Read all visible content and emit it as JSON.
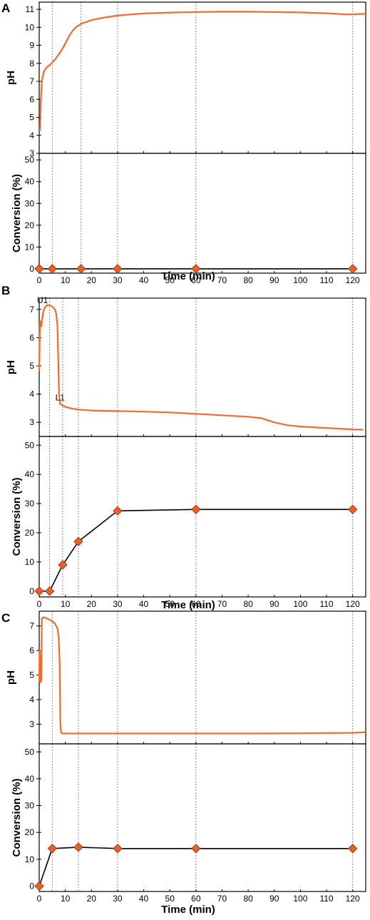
{
  "colors": {
    "ph_line": "#f26a2e",
    "marker_fill": "#e8602a",
    "marker_stroke": "#a83a12",
    "conv_line": "#000000",
    "guide": "#7a7a7a"
  },
  "chart_data": [
    {
      "panel": "A",
      "type": "line",
      "xlabel": "Time (min)",
      "xlim": [
        0,
        125
      ],
      "x_ticks": [
        0,
        10,
        20,
        30,
        40,
        50,
        60,
        70,
        80,
        90,
        100,
        110,
        120
      ],
      "guide_lines_x": [
        5,
        16,
        30,
        60,
        120
      ],
      "ph": {
        "ylabel": "pH",
        "ylim": [
          3,
          11.4
        ],
        "y_ticks": [
          3,
          4,
          5,
          6,
          7,
          8,
          9,
          10,
          11
        ],
        "series": [
          {
            "x": [
              0,
              0.3,
              0.6,
              1,
              1.5,
              2,
              3,
              4,
              5,
              6,
              7,
              8,
              9,
              10,
              11,
              12,
              13,
              14,
              16,
              18,
              20,
              25,
              30,
              35,
              40,
              50,
              60,
              70,
              80,
              90,
              100,
              110,
              118,
              125
            ],
            "y": [
              4.3,
              4.3,
              5.8,
              7.0,
              7.4,
              7.6,
              7.8,
              7.9,
              8.05,
              8.2,
              8.4,
              8.6,
              8.85,
              9.1,
              9.4,
              9.65,
              9.85,
              10.0,
              10.2,
              10.3,
              10.4,
              10.55,
              10.65,
              10.72,
              10.77,
              10.82,
              10.85,
              10.87,
              10.87,
              10.85,
              10.83,
              10.78,
              10.72,
              10.75
            ]
          }
        ]
      },
      "conversion": {
        "ylabel": "Conversion (%)",
        "ylim": [
          -2,
          53
        ],
        "y_ticks": [
          0,
          10,
          20,
          30,
          40,
          50
        ],
        "series": [
          {
            "x": [
              0,
              5,
              16,
              30,
              60,
              120
            ],
            "y": [
              0,
              0,
              0,
              0,
              0,
              0
            ]
          }
        ]
      },
      "annotations": []
    },
    {
      "panel": "B",
      "type": "line",
      "xlabel": "Time (min)",
      "xlim": [
        0,
        125
      ],
      "x_ticks": [
        0,
        10,
        20,
        30,
        40,
        50,
        60,
        70,
        80,
        90,
        100,
        110,
        120
      ],
      "guide_lines_x": [
        4,
        9,
        15,
        30,
        60,
        120
      ],
      "ph": {
        "ylabel": "pH",
        "ylim": [
          2.5,
          7.4
        ],
        "y_ticks": [
          3,
          4,
          5,
          6,
          7
        ],
        "series": [
          {
            "x": [
              0,
              0.3,
              0.8,
              1.5,
              2,
              3,
              4,
              5,
              6,
              6.5,
              7,
              7.3,
              7.6,
              8,
              9,
              10,
              12,
              15,
              20,
              30,
              40,
              50,
              60,
              70,
              80,
              85,
              90,
              95,
              100,
              110,
              120,
              124
            ],
            "y": [
              4.8,
              6.6,
              6.4,
              6.9,
              7.05,
              7.15,
              7.15,
              7.1,
              7.0,
              6.85,
              6.4,
              5.2,
              4.0,
              3.65,
              3.6,
              3.55,
              3.5,
              3.45,
              3.42,
              3.4,
              3.38,
              3.35,
              3.3,
              3.25,
              3.2,
              3.15,
              3.0,
              2.9,
              2.85,
              2.8,
              2.75,
              2.74
            ]
          }
        ]
      },
      "conversion": {
        "ylabel": "Conversion (%)",
        "ylim": [
          -2,
          53
        ],
        "y_ticks": [
          0,
          10,
          20,
          30,
          40,
          50
        ],
        "series": [
          {
            "x": [
              0,
              4,
              9,
              15,
              30,
              60,
              120
            ],
            "y": [
              0,
              0,
              9,
              17,
              27.5,
              28,
              28
            ]
          }
        ]
      },
      "annotations": [
        {
          "text": "U1",
          "x": 3,
          "y": 7.15
        },
        {
          "text": "L1",
          "x": 10,
          "y": 3.62
        }
      ]
    },
    {
      "panel": "C",
      "type": "line",
      "xlabel": "Time (min)",
      "xlim": [
        0,
        125
      ],
      "x_ticks": [
        0,
        10,
        20,
        30,
        40,
        50,
        60,
        70,
        80,
        90,
        100,
        110,
        120
      ],
      "guide_lines_x": [
        5,
        15,
        30,
        60,
        120
      ],
      "ph": {
        "ylabel": "pH",
        "ylim": [
          2.2,
          7.6
        ],
        "y_ticks": [
          3,
          4,
          5,
          6,
          7
        ],
        "series": [
          {
            "x": [
              0,
              0.2,
              0.5,
              0.8,
              1,
              1.5,
              2,
              3,
              4,
              5,
              6,
              7,
              7.5,
              7.8,
              8.1,
              8.4,
              9,
              10,
              15,
              20,
              30,
              40,
              60,
              80,
              100,
              120,
              125
            ],
            "y": [
              4.7,
              6.0,
              4.7,
              4.8,
              7.3,
              7.35,
              7.35,
              7.3,
              7.25,
              7.2,
              7.1,
              6.9,
              6.5,
              5.5,
              3.0,
              2.65,
              2.62,
              2.62,
              2.62,
              2.62,
              2.62,
              2.62,
              2.62,
              2.62,
              2.63,
              2.65,
              2.67
            ]
          }
        ]
      },
      "conversion": {
        "ylabel": "Conversion (%)",
        "ylim": [
          -2,
          53
        ],
        "y_ticks": [
          0,
          10,
          20,
          30,
          40,
          50
        ],
        "series": [
          {
            "x": [
              0,
              5,
              15,
              30,
              60,
              120
            ],
            "y": [
              0,
              14,
              14.5,
              14,
              14,
              14
            ]
          }
        ]
      },
      "annotations": []
    }
  ]
}
